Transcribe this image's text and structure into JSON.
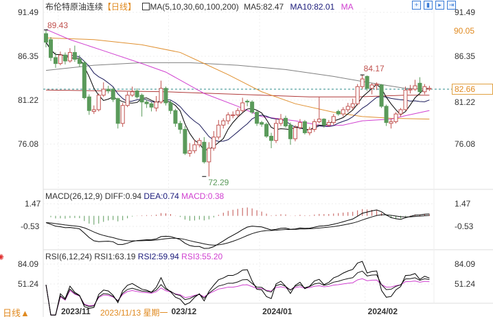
{
  "header": {
    "title": "布伦特原油连续",
    "period": "【日线】",
    "ma_label": "MA(5,10,30,60,100,200)",
    "ma5": "MA5:82.47",
    "ma10": "MA10:82.01",
    "ma_more": "MA"
  },
  "toolbar_icons": [
    "crosshair-icon",
    "bar-chart-icon",
    "play-chart-icon",
    "export-icon"
  ],
  "price_axis": {
    "ticks": [
      91.49,
      86.35,
      81.22,
      76.08
    ],
    "labels": [
      "91.49",
      "86.35",
      "81.22",
      "76.08"
    ],
    "right_box_top": "90.05",
    "right_box_current": "82.66",
    "current_line": 82.5
  },
  "annotations": {
    "high": "89.43",
    "high_value": 89.43,
    "high_index": 0,
    "peak": "84.17",
    "peak_value": 84.17,
    "peak_index": 66,
    "low": "72.29",
    "low_value": 72.29,
    "low_index": 33
  },
  "colors": {
    "up": "#c0504d",
    "down": "#5a9a5a",
    "ma5": "#000000",
    "ma10": "#1a1a5a",
    "ma30": "#d040d0",
    "ma60": "#e09030",
    "ma100": "#b03a3a",
    "ma200": "#808080",
    "accent": "#e08a20"
  },
  "candles": [
    [
      89.0,
      89.43,
      87.4,
      88.0
    ],
    [
      88.3,
      88.6,
      85.8,
      86.2
    ],
    [
      86.2,
      86.8,
      85.0,
      85.5
    ],
    [
      85.5,
      86.9,
      85.3,
      86.5
    ],
    [
      86.5,
      86.8,
      85.4,
      85.8
    ],
    [
      85.8,
      87.3,
      85.6,
      86.8
    ],
    [
      86.8,
      87.6,
      85.7,
      86.0
    ],
    [
      86.0,
      86.5,
      85.1,
      85.5
    ],
    [
      85.6,
      85.8,
      81.3,
      81.5
    ],
    [
      81.6,
      81.9,
      79.5,
      80.0
    ],
    [
      79.9,
      80.6,
      79.6,
      80.1
    ],
    [
      80.1,
      82.0,
      79.9,
      81.8
    ],
    [
      81.8,
      83.3,
      81.6,
      82.5
    ],
    [
      82.5,
      82.9,
      82.0,
      82.3
    ],
    [
      82.5,
      82.7,
      81.0,
      81.3
    ],
    [
      81.4,
      81.5,
      77.9,
      78.5
    ],
    [
      78.5,
      80.9,
      78.1,
      80.6
    ],
    [
      80.6,
      82.2,
      80.4,
      81.8
    ],
    [
      81.8,
      82.8,
      81.6,
      82.2
    ],
    [
      82.3,
      82.6,
      81.4,
      81.6
    ],
    [
      81.8,
      82.0,
      79.3,
      81.0
    ],
    [
      81.0,
      81.3,
      80.3,
      80.8
    ],
    [
      80.8,
      81.0,
      79.9,
      80.4
    ],
    [
      80.3,
      81.7,
      79.9,
      81.0
    ],
    [
      81.0,
      83.5,
      80.8,
      82.6
    ],
    [
      82.6,
      82.8,
      80.6,
      80.9
    ],
    [
      80.9,
      81.2,
      79.6,
      80.0
    ],
    [
      80.0,
      80.2,
      78.1,
      78.5
    ],
    [
      78.5,
      78.8,
      77.3,
      77.8
    ],
    [
      77.8,
      78.2,
      74.8,
      75.0
    ],
    [
      75.0,
      76.2,
      74.6,
      75.3
    ],
    [
      75.3,
      76.6,
      75.0,
      76.0
    ],
    [
      76.0,
      76.8,
      75.7,
      76.5
    ],
    [
      76.3,
      76.9,
      73.8,
      74.0
    ],
    [
      74.0,
      76.3,
      72.29,
      75.6
    ],
    [
      75.6,
      77.6,
      75.3,
      76.9
    ],
    [
      76.9,
      78.9,
      76.6,
      78.3
    ],
    [
      78.3,
      79.1,
      77.9,
      78.8
    ],
    [
      78.8,
      79.8,
      78.4,
      79.5
    ],
    [
      79.4,
      79.9,
      79.1,
      79.5
    ],
    [
      79.5,
      80.3,
      79.2,
      80.0
    ],
    [
      80.0,
      81.5,
      79.8,
      80.9
    ],
    [
      81.1,
      81.3,
      80.5,
      81.0
    ],
    [
      81.0,
      81.2,
      79.6,
      79.8
    ],
    [
      79.8,
      80.0,
      78.2,
      78.5
    ],
    [
      78.6,
      78.8,
      78.1,
      78.4
    ],
    [
      78.4,
      78.6,
      76.8,
      77.0
    ],
    [
      77.0,
      77.4,
      75.6,
      76.5
    ],
    [
      76.5,
      79.1,
      76.2,
      78.5
    ],
    [
      78.5,
      79.6,
      78.2,
      79.0
    ],
    [
      79.1,
      79.4,
      78.0,
      78.2
    ],
    [
      78.3,
      78.6,
      76.0,
      76.7
    ],
    [
      76.7,
      78.3,
      76.4,
      78.0
    ],
    [
      78.0,
      79.0,
      77.8,
      78.6
    ],
    [
      78.7,
      78.9,
      77.2,
      77.4
    ],
    [
      77.4,
      78.1,
      77.1,
      77.8
    ],
    [
      77.8,
      79.0,
      77.5,
      78.7
    ],
    [
      78.7,
      81.6,
      78.5,
      79.0
    ],
    [
      79.0,
      79.1,
      78.0,
      78.3
    ],
    [
      78.3,
      78.9,
      78.1,
      78.6
    ],
    [
      78.6,
      79.6,
      78.3,
      79.3
    ],
    [
      79.9,
      80.1,
      79.4,
      79.6
    ],
    [
      79.6,
      80.4,
      79.3,
      80.1
    ],
    [
      80.1,
      80.9,
      79.8,
      80.5
    ],
    [
      80.4,
      81.4,
      80.1,
      80.8
    ],
    [
      80.8,
      83.1,
      80.6,
      82.8
    ],
    [
      82.8,
      84.17,
      82.5,
      83.7
    ],
    [
      84.0,
      84.1,
      82.3,
      82.6
    ],
    [
      82.6,
      83.2,
      81.9,
      83.0
    ],
    [
      83.0,
      83.3,
      82.4,
      83.1
    ],
    [
      83.0,
      83.1,
      80.3,
      80.5
    ],
    [
      80.5,
      80.7,
      78.2,
      78.6
    ],
    [
      78.5,
      79.0,
      77.9,
      78.7
    ],
    [
      78.7,
      79.8,
      78.5,
      79.6
    ],
    [
      79.6,
      80.3,
      79.3,
      80.1
    ],
    [
      80.1,
      82.8,
      80.0,
      82.4
    ],
    [
      82.4,
      83.0,
      82.0,
      82.5
    ],
    [
      82.5,
      83.6,
      82.3,
      82.9
    ],
    [
      83.2,
      83.9,
      81.8,
      82.2
    ],
    [
      82.2,
      83.1,
      81.9,
      82.8
    ],
    [
      82.5,
      82.9,
      82.3,
      82.6
    ]
  ],
  "ma_sparse": {
    "ma30": [
      [
        0,
        89.5
      ],
      [
        5,
        88.3
      ],
      [
        12,
        87.0
      ],
      [
        20,
        85.5
      ],
      [
        25,
        84.5
      ],
      [
        33,
        82.0
      ],
      [
        40,
        80.5
      ],
      [
        45,
        79.3
      ],
      [
        52,
        78.8
      ],
      [
        58,
        78.2
      ],
      [
        62,
        78.3
      ],
      [
        66,
        78.8
      ],
      [
        72,
        79.0
      ],
      [
        75,
        79.4
      ],
      [
        80,
        80.0
      ]
    ],
    "ma60": [
      [
        0,
        88.5
      ],
      [
        10,
        88.3
      ],
      [
        20,
        87.7
      ],
      [
        28,
        86.8
      ],
      [
        33,
        85.5
      ],
      [
        38,
        84.2
      ],
      [
        45,
        82.2
      ],
      [
        52,
        80.8
      ],
      [
        60,
        79.8
      ],
      [
        66,
        79.3
      ],
      [
        72,
        79.1
      ],
      [
        80,
        79.0
      ]
    ],
    "ma100": [
      [
        0,
        82.4
      ],
      [
        25,
        82.2
      ],
      [
        40,
        81.9
      ],
      [
        55,
        81.6
      ],
      [
        65,
        81.6
      ],
      [
        75,
        81.8
      ],
      [
        80,
        81.8
      ]
    ],
    "ma200": [
      [
        0,
        84.7
      ],
      [
        10,
        85.3
      ],
      [
        20,
        85.6
      ],
      [
        30,
        85.6
      ],
      [
        40,
        85.3
      ],
      [
        50,
        84.8
      ],
      [
        60,
        84.0
      ],
      [
        67,
        83.3
      ],
      [
        75,
        82.6
      ],
      [
        80,
        82.5
      ]
    ]
  },
  "macd": {
    "label": "MACD(26,12,9)",
    "diff": "DIFF:0.94",
    "dea": "DEA:0.74",
    "macd": "MACD:0.38",
    "ticks": [
      1.47,
      -0.53
    ],
    "labels": [
      "1.47",
      "-0.53"
    ]
  },
  "rsi": {
    "label": "RSI(6,12,24)",
    "rsi1": "RSI1:63.19",
    "rsi2": "RSI2:59.94",
    "rsi3": "RSI3:55.20",
    "ticks": [
      84.09,
      51.24
    ],
    "labels": [
      "84.09",
      "51.24"
    ]
  },
  "xaxis": {
    "period_button": "日线▲",
    "cursor_date": "2023/11/13 星期一",
    "labels": [
      {
        "text": "2023/11",
        "index": 3
      },
      {
        "text": "023/12",
        "index": 26
      },
      {
        "text": "2024/01",
        "index": 45
      },
      {
        "text": "2024/02",
        "index": 67
      }
    ]
  }
}
